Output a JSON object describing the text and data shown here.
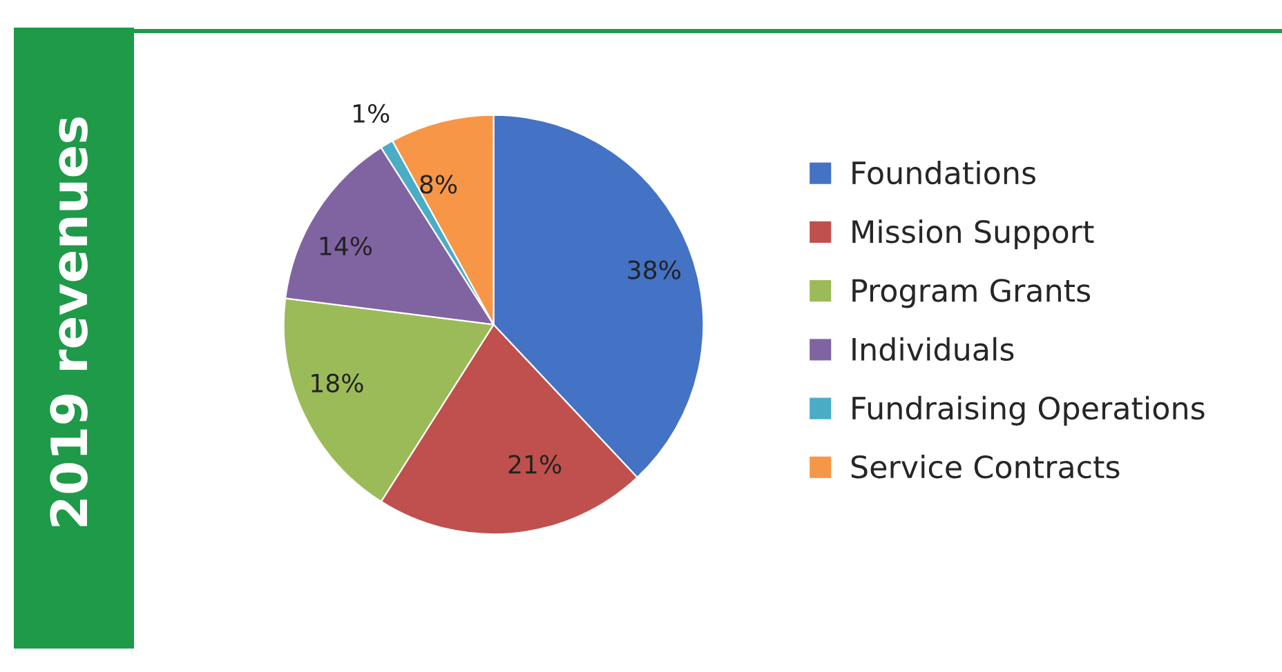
{
  "chart_data": {
    "type": "pie",
    "title": "2019 revenues",
    "categories": [
      "Foundations",
      "Mission Support",
      "Program Grants",
      "Individuals",
      "Fundraising Operations",
      "Service Contracts"
    ],
    "values": [
      38,
      21,
      18,
      14,
      1,
      8
    ],
    "colors": [
      "#4472c4",
      "#c0504d",
      "#9bbb59",
      "#8064a2",
      "#4bacc6",
      "#f79646"
    ],
    "value_labels": [
      "38%",
      "21%",
      "18%",
      "14%",
      "1%",
      "8%"
    ],
    "legend": "right"
  }
}
